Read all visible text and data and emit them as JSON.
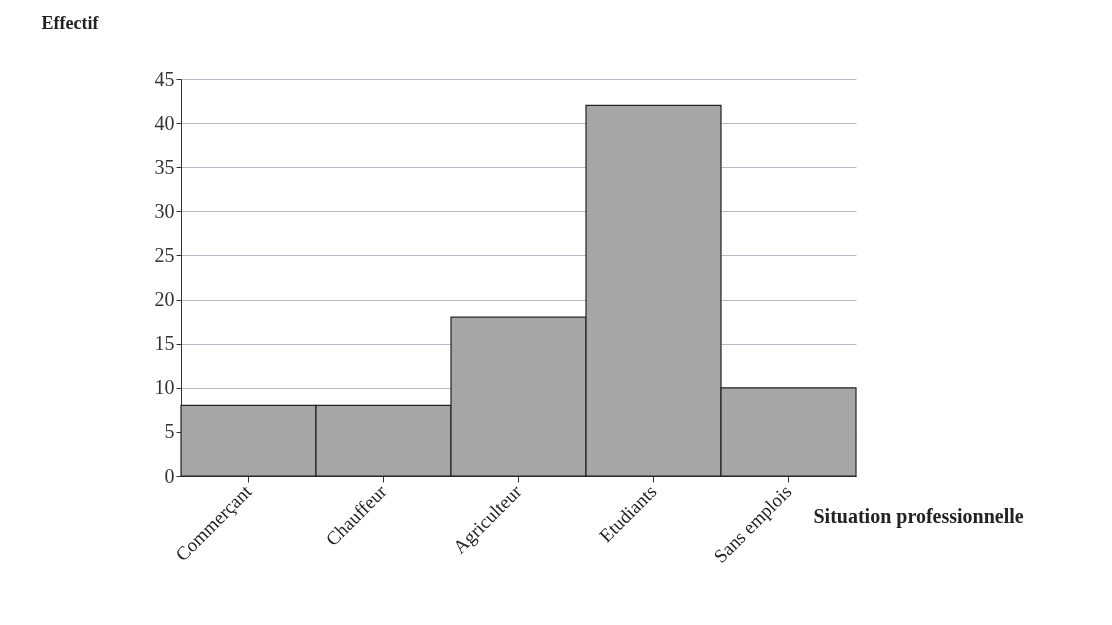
{
  "chart_data": {
    "type": "bar",
    "xlabel": "Situation professionnelle",
    "ylabel": "Effectif",
    "categories": [
      "Commerçant",
      "Chauffeur",
      "Agriculteur",
      "Etudiants",
      "Sans emplois"
    ],
    "values": [
      8,
      8,
      18,
      42,
      10
    ],
    "color": "#a6a6a6",
    "ylim": [
      0,
      45
    ],
    "yticks": [
      0,
      5,
      10,
      15,
      20,
      25,
      30,
      35,
      40,
      45
    ],
    "grid": "y"
  }
}
